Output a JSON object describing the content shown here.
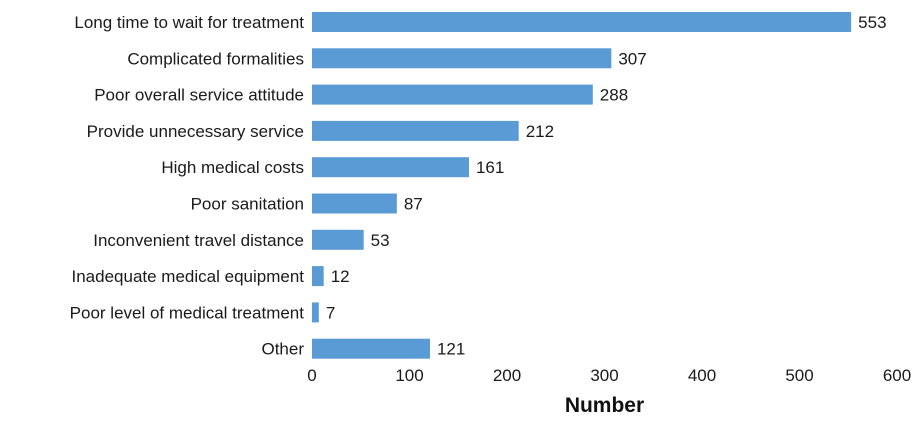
{
  "chart_data": {
    "type": "bar",
    "orientation": "horizontal",
    "categories": [
      "Long time to wait for treatment",
      "Complicated formalities",
      "Poor overall service attitude",
      "Provide unnecessary service",
      "High medical costs",
      "Poor sanitation",
      "Inconvenient travel distance",
      "Inadequate medical equipment",
      "Poor level of medical treatment",
      "Other"
    ],
    "values": [
      553,
      307,
      288,
      212,
      161,
      87,
      53,
      12,
      7,
      121
    ],
    "data_labels": [
      "553",
      "307",
      "288",
      "212",
      "161",
      "87",
      "53",
      "12",
      "7",
      "121"
    ],
    "xlabel": "Number",
    "ylabel": "",
    "title": "",
    "xlim": [
      0,
      600
    ],
    "xticks": [
      0,
      100,
      200,
      300,
      400,
      500,
      600
    ],
    "xtick_labels": [
      "0",
      "100",
      "200",
      "300",
      "400",
      "500",
      "600"
    ],
    "grid": false,
    "legend": "none",
    "bar_color": "#5b9bd5"
  }
}
